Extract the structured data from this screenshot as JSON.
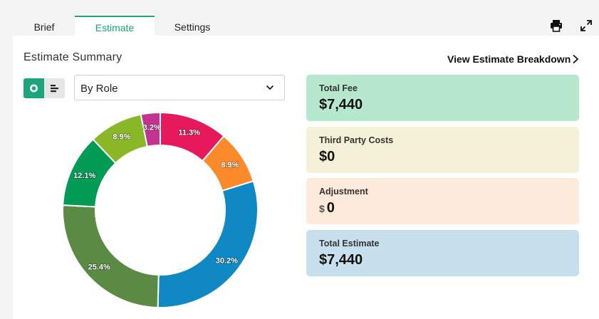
{
  "tabs": [
    {
      "label": "Brief",
      "active": false
    },
    {
      "label": "Estimate",
      "active": true
    },
    {
      "label": "Settings",
      "active": false
    }
  ],
  "summary": {
    "title": "Estimate Summary",
    "breakdown_link": "View Estimate Breakdown",
    "group_by": "By Role"
  },
  "cards": [
    {
      "label": "Total Fee",
      "value": "$7,440",
      "color": "#b5e8cc"
    },
    {
      "label": "Third Party Costs",
      "value": "$0",
      "color": "#f5f0d8"
    },
    {
      "label": "Adjustment",
      "currency": "$",
      "amount": "0",
      "color": "#fdeadb"
    },
    {
      "label": "Total Estimate",
      "value": "$7,440",
      "color": "#c8e0ee"
    }
  ],
  "chart_data": {
    "type": "pie",
    "donut": true,
    "title": "",
    "slices": [
      {
        "label": "11.3%",
        "value": 11.3,
        "color": "#e5195b"
      },
      {
        "label": "8.9%",
        "value": 8.9,
        "color": "#fb8a2b"
      },
      {
        "label": "30.2%",
        "value": 30.2,
        "color": "#0f88c4"
      },
      {
        "label": "25.4%",
        "value": 25.4,
        "color": "#5a8a43"
      },
      {
        "label": "12.1%",
        "value": 12.1,
        "color": "#019b55"
      },
      {
        "label": "8.9%",
        "value": 8.9,
        "color": "#89b728"
      },
      {
        "label": "3.2%",
        "value": 3.2,
        "color": "#c2338f"
      }
    ]
  }
}
